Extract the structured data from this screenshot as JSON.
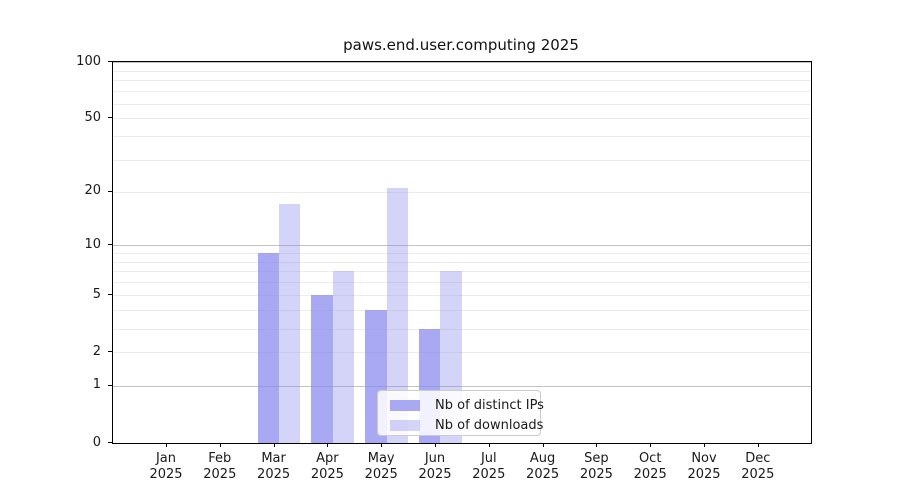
{
  "title": "paws.end.user.computing 2025",
  "chart_data": {
    "type": "bar",
    "title": "paws.end.user.computing 2025",
    "categories": [
      "Jan 2025",
      "Feb 2025",
      "Mar 2025",
      "Apr 2025",
      "May 2025",
      "Jun 2025",
      "Jul 2025",
      "Aug 2025",
      "Sep 2025",
      "Oct 2025",
      "Nov 2025",
      "Dec 2025"
    ],
    "month_labels": [
      "Jan",
      "Feb",
      "Mar",
      "Apr",
      "May",
      "Jun",
      "Jul",
      "Aug",
      "Sep",
      "Oct",
      "Nov",
      "Dec"
    ],
    "year_label": "2025",
    "series": [
      {
        "name": "Nb of distinct IPs",
        "color": "#8888ee",
        "alpha": 0.72,
        "values": [
          9,
          5,
          4,
          3,
          null,
          null,
          null,
          null,
          null,
          null,
          null,
          null
        ]
      },
      {
        "name": "Nb of downloads",
        "color": "#8888ee",
        "alpha": 0.36,
        "values": [
          17,
          7,
          21,
          7,
          null,
          null,
          null,
          null,
          null,
          null,
          null,
          null
        ]
      }
    ],
    "xlabel": "",
    "ylabel": "",
    "y_axis": {
      "scale": "log1p",
      "tick_values": [
        0,
        1,
        2,
        5,
        10,
        20,
        50,
        100
      ],
      "tick_labels": [
        "0",
        "1",
        "2",
        "5",
        "10",
        "20",
        "50",
        "100"
      ],
      "ylim": [
        0,
        112
      ]
    },
    "grid": {
      "show": true,
      "orientation": "horizontal",
      "minor_values": [
        2,
        3,
        4,
        5,
        6,
        7,
        8,
        9,
        20,
        30,
        40,
        50,
        60,
        70,
        80,
        90
      ],
      "major_values": [
        1,
        10,
        100
      ]
    },
    "legend": {
      "position": "lower center",
      "items": [
        "Nb of distinct IPs",
        "Nb of downloads"
      ]
    }
  },
  "colors": {
    "background": "#ffffff",
    "bar_fill_base": "#8888ee",
    "grid_minor": "#ececec",
    "grid_major": "#c3c3c3",
    "axis": "#000000",
    "text": "#1a1a1a",
    "legend_border": "#cccccc"
  }
}
